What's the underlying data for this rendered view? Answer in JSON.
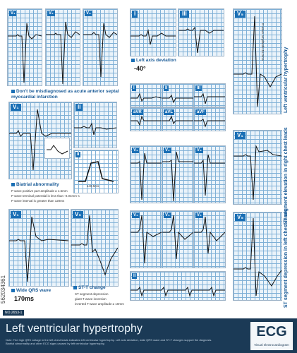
{
  "captions": {
    "misdiagnosed": "Don't be misdiagnosed as acute anterior septal myocardial infarction",
    "left_axis": "Left axis deviation",
    "axis_value": "-40°",
    "biatrial": "Biatrial abnormality",
    "biatrial_notes": [
      "P wave positive part amplitude ≥ 1.5mm",
      "P wave terminal potential is less than -0.04mm·s",
      "P wave interval is greater than 120ms"
    ],
    "wide_qrs": "Wide QRS wave",
    "qrs_value": "170ms",
    "st_t": "ST-T change",
    "st_t_notes": [
      "ST segment depression",
      "giant T wave inversion",
      "inverted T-wave amplitude ≥ 10mm"
    ],
    "lvh_vertical": "Left ventricular hypertrophy",
    "st_elev_vertical": "ST segment elevation in right chest leads",
    "st_dep_vertical": "ST segment depression in left chest leads",
    "r_amp_note": "R wave amplitude 46.0mm",
    "p_duration": "140.5ms"
  },
  "leads": {
    "v1": "V₁",
    "v2": "V₂",
    "v3": "V₃",
    "i": "I",
    "iii": "III",
    "ii": "II",
    "avr": "aVR",
    "avl": "aVL",
    "avf": "aVF",
    "v4": "V₄",
    "v5": "V₅",
    "v6": "V₆"
  },
  "footer": {
    "id": "NO.2653-1",
    "title": "Left ventricular hypertrophy",
    "fine": "Note: The high QRS voltage in the left chest leads indicates left ventricular hypertrophy. Left axis deviation, wide QRS wave and ST-T changes support the diagnosis. Biatrial abnormality and other ECG signs caused by left ventricular hypertrophy.",
    "logo": "ECG",
    "logo_sub": "Visual electrocardiogram"
  },
  "watermark_id": "562034361"
}
